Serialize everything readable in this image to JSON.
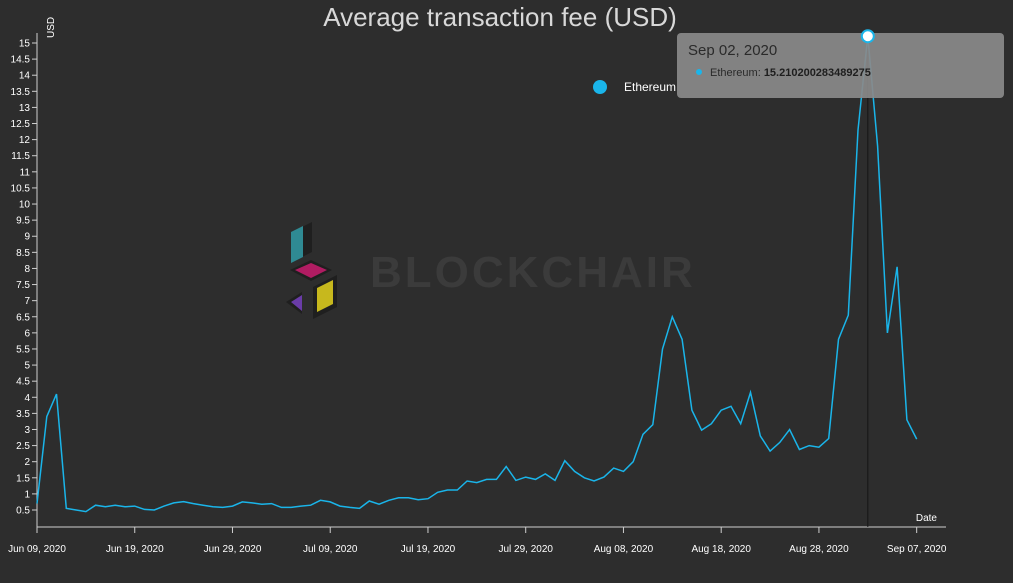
{
  "chart_data": {
    "type": "line",
    "title": "Average transaction fee (USD)",
    "ylabel": "USD",
    "xlabel": "Date",
    "ylim": [
      0.5,
      15
    ],
    "yticks": [
      0.5,
      1,
      1.5,
      2,
      2.5,
      3,
      3.5,
      4,
      4.5,
      5,
      5.5,
      6,
      6.5,
      7,
      7.5,
      8,
      8.5,
      9,
      9.5,
      10,
      10.5,
      11,
      11.5,
      12,
      12.5,
      13,
      13.5,
      14,
      14.5,
      15
    ],
    "yticks_labels": [
      "0.5",
      "1",
      "1.5",
      "2",
      "2.5",
      "3",
      "3.5",
      "4",
      "4.5",
      "5",
      "5.5",
      "6",
      "6.5",
      "7",
      "7.5",
      "8",
      "8.5",
      "9",
      "9.5",
      "10",
      "10.5",
      "11",
      "11.5",
      "12",
      "12.5",
      "13",
      "13.5",
      "14",
      "14.5",
      "15"
    ],
    "x_start_date": "2020-06-09",
    "x_end_date": "2020-09-07",
    "xticks": [
      {
        "day": 0,
        "label": "Jun 09, 2020"
      },
      {
        "day": 10,
        "label": "Jun 19, 2020"
      },
      {
        "day": 20,
        "label": "Jun 29, 2020"
      },
      {
        "day": 30,
        "label": "Jul 09, 2020"
      },
      {
        "day": 40,
        "label": "Jul 19, 2020"
      },
      {
        "day": 50,
        "label": "Jul 29, 2020"
      },
      {
        "day": 60,
        "label": "Aug 08, 2020"
      },
      {
        "day": 70,
        "label": "Aug 18, 2020"
      },
      {
        "day": 80,
        "label": "Aug 28, 2020"
      },
      {
        "day": 90,
        "label": "Sep 07, 2020"
      }
    ],
    "series": [
      {
        "name": "Ethereum",
        "color": "#1ab5ea",
        "values": [
          0.7,
          3.4,
          4.1,
          0.55,
          0.5,
          0.45,
          0.65,
          0.6,
          0.65,
          0.6,
          0.62,
          0.52,
          0.5,
          0.62,
          0.72,
          0.76,
          0.7,
          0.65,
          0.6,
          0.58,
          0.62,
          0.75,
          0.72,
          0.68,
          0.7,
          0.58,
          0.58,
          0.62,
          0.65,
          0.8,
          0.75,
          0.62,
          0.58,
          0.55,
          0.78,
          0.68,
          0.8,
          0.88,
          0.88,
          0.82,
          0.85,
          1.05,
          1.12,
          1.12,
          1.4,
          1.35,
          1.45,
          1.45,
          1.85,
          1.42,
          1.52,
          1.45,
          1.62,
          1.42,
          2.03,
          1.7,
          1.5,
          1.4,
          1.52,
          1.8,
          1.7,
          2.0,
          2.85,
          3.15,
          5.5,
          6.5,
          5.8,
          3.6,
          2.98,
          3.18,
          3.6,
          3.72,
          3.18,
          4.15,
          2.8,
          2.33,
          2.6,
          3.0,
          2.38,
          2.5,
          2.45,
          2.72,
          5.8,
          6.55,
          12.3,
          15.21,
          11.8,
          6.0,
          8.05,
          3.3,
          2.7
        ]
      }
    ],
    "legend": [
      {
        "label": "Ethereum",
        "color": "#1ab5ea",
        "position": "top-right"
      }
    ],
    "tooltip": {
      "date": "Sep 02, 2020",
      "series_label": "Ethereum: ",
      "value": "15.210200283489275",
      "day_index": 85
    }
  },
  "watermark": {
    "text": "BLOCKCHAIR"
  },
  "colors": {
    "background": "#2d2d2d",
    "line": "#1ab5ea",
    "axis": "#cfcfcf",
    "text": "#ffffff"
  }
}
